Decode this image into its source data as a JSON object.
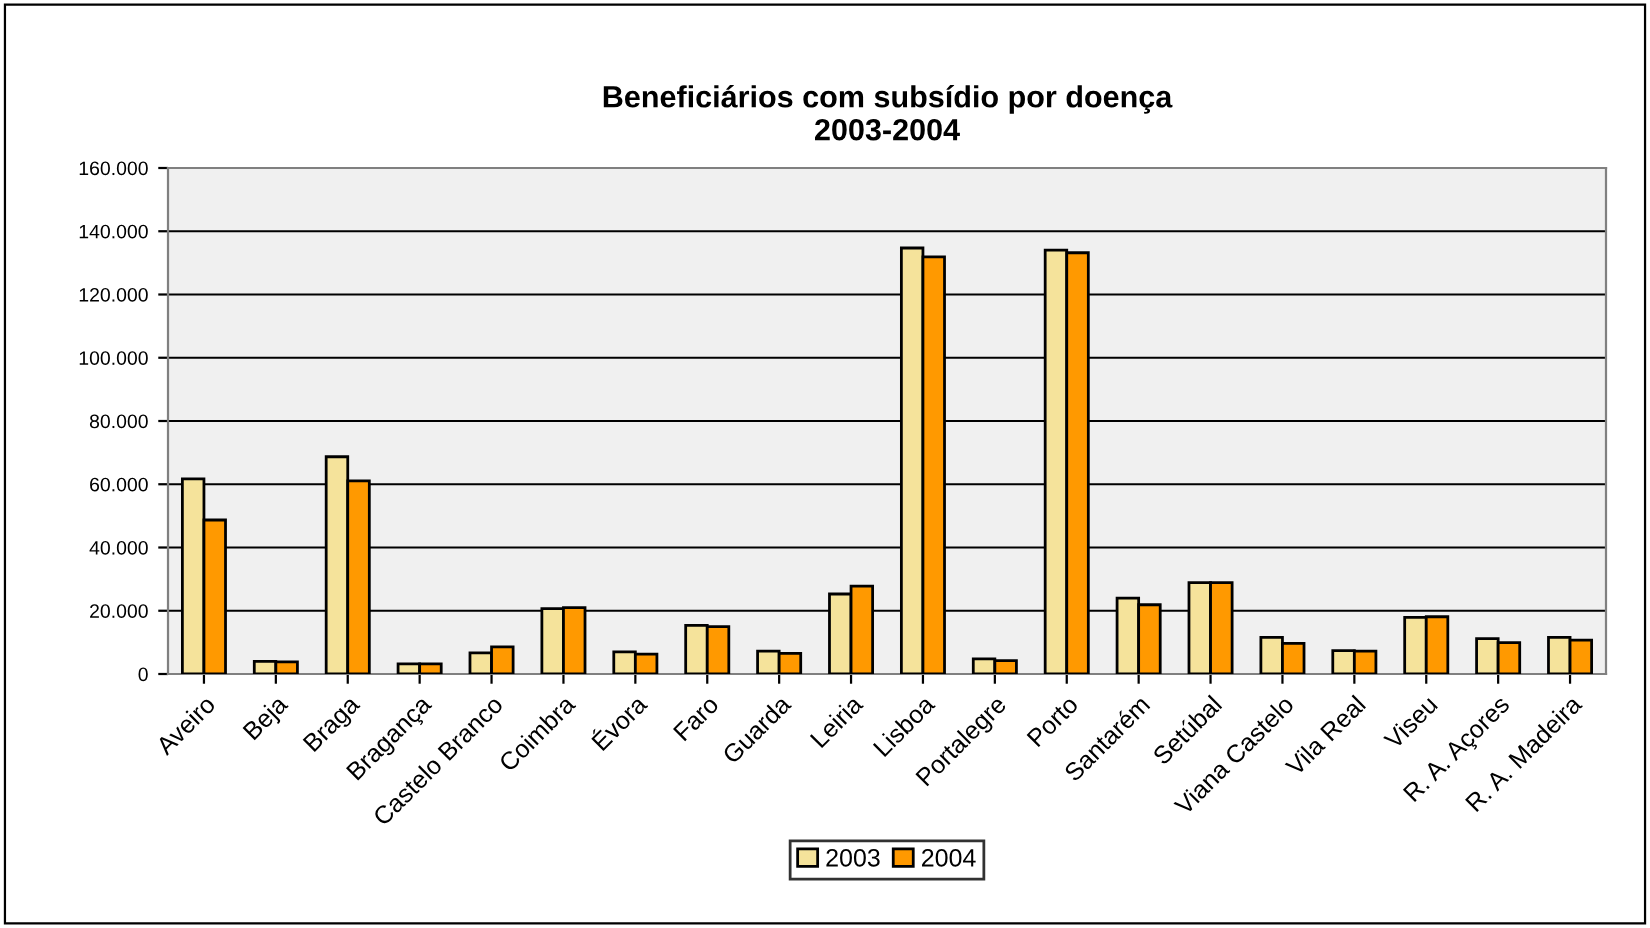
{
  "chart_data": {
    "type": "bar",
    "title": "Beneficiários com subsídio por doença\n2003-2004",
    "categories": [
      "Aveiro",
      "Beja",
      "Braga",
      "Bragança",
      "Castelo Branco",
      "Coimbra",
      "Évora",
      "Faro",
      "Guarda",
      "Leiria",
      "Lisboa",
      "Portalegre",
      "Porto",
      "Santarém",
      "Setúbal",
      "Viana Castelo",
      "Vila Real",
      "Viseu",
      "R. A. Açores",
      "R. A. Madeira"
    ],
    "series": [
      {
        "name": "2003",
        "color": "#f5e39b",
        "values": [
          61700,
          4000,
          68700,
          3200,
          6700,
          20700,
          7000,
          15400,
          7200,
          25300,
          134700,
          4800,
          134000,
          24000,
          28900,
          11600,
          7400,
          17900,
          11200,
          11600
        ]
      },
      {
        "name": "2004",
        "color": "#ff9900",
        "values": [
          48700,
          3800,
          61100,
          3200,
          8600,
          21000,
          6300,
          15000,
          6500,
          27800,
          131900,
          4200,
          133200,
          21900,
          28900,
          9700,
          7200,
          18100,
          9900,
          10700
        ]
      }
    ],
    "ylim": [
      0,
      160000
    ],
    "yticks": [
      0,
      {
        "value": 20000,
        "label": "20.000"
      },
      {
        "value": 40000,
        "label": "40.000"
      },
      {
        "value": 60000,
        "label": "60.000"
      },
      {
        "value": 80000,
        "label": "80.000"
      },
      {
        "value": 100000,
        "label": "100.000"
      },
      {
        "value": 120000,
        "label": "120.000"
      },
      {
        "value": 140000,
        "label": "140.000"
      },
      {
        "value": 160000,
        "label": "160.000"
      }
    ],
    "grid": "y",
    "legend": "bottom"
  }
}
